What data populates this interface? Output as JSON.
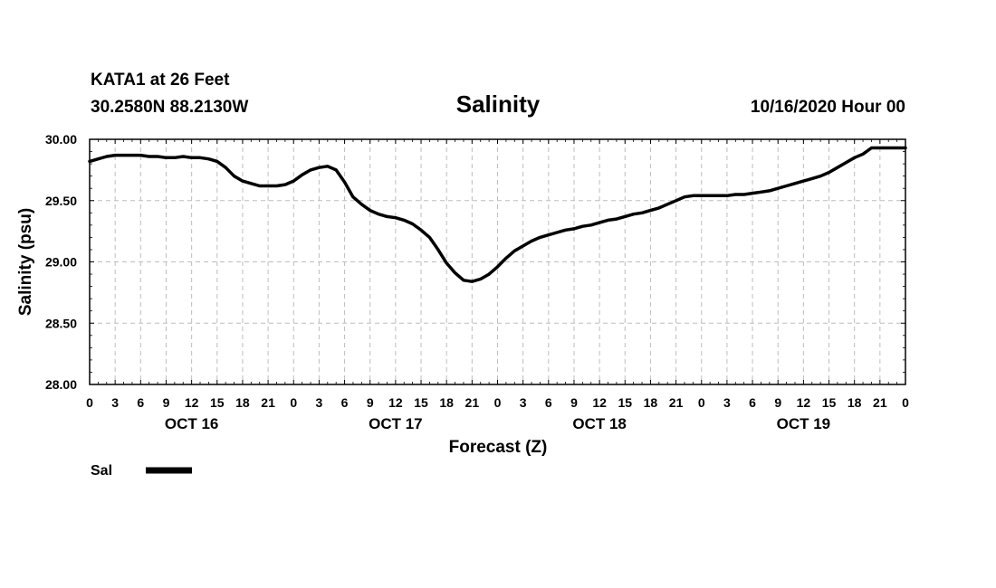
{
  "header": {
    "station": "KATA1 at 26 Feet",
    "coords": "30.2580N 88.2130W",
    "title": "Salinity",
    "timestamp": "10/16/2020 Hour 00"
  },
  "chart_data": {
    "type": "line",
    "title": "Salinity",
    "xlabel": "Forecast (Z)",
    "ylabel": "Salinity (psu)",
    "xlim": [
      0,
      96
    ],
    "ylim": [
      28.0,
      30.0
    ],
    "yticks": [
      "28.00",
      "28.50",
      "29.00",
      "29.50",
      "30.00"
    ],
    "ytick_values": [
      28.0,
      28.5,
      29.0,
      29.5,
      30.0
    ],
    "xtick_labels": [
      "0",
      "3",
      "6",
      "9",
      "12",
      "15",
      "18",
      "21",
      "0",
      "3",
      "6",
      "9",
      "12",
      "15",
      "18",
      "21",
      "0",
      "3",
      "6",
      "9",
      "12",
      "15",
      "18",
      "21",
      "0",
      "3",
      "6",
      "9",
      "12",
      "15",
      "18",
      "21",
      "0"
    ],
    "day_labels": [
      {
        "label": "OCT 16",
        "hour": 12
      },
      {
        "label": "OCT 17",
        "hour": 36
      },
      {
        "label": "OCT 18",
        "hour": 60
      },
      {
        "label": "OCT 19",
        "hour": 84
      }
    ],
    "grid": true,
    "series": [
      {
        "name": "Sal",
        "color": "#000000",
        "x": [
          0,
          1,
          2,
          3,
          4,
          5,
          6,
          7,
          8,
          9,
          10,
          11,
          12,
          13,
          14,
          15,
          16,
          17,
          18,
          19,
          20,
          21,
          22,
          23,
          24,
          25,
          26,
          27,
          28,
          29,
          30,
          31,
          32,
          33,
          34,
          35,
          36,
          37,
          38,
          39,
          40,
          41,
          42,
          43,
          44,
          45,
          46,
          47,
          48,
          49,
          50,
          51,
          52,
          53,
          54,
          55,
          56,
          57,
          58,
          59,
          60,
          61,
          62,
          63,
          64,
          65,
          66,
          67,
          68,
          69,
          70,
          71,
          72,
          73,
          74,
          75,
          76,
          77,
          78,
          79,
          80,
          81,
          82,
          83,
          84,
          85,
          86,
          87,
          88,
          89,
          90,
          91,
          92,
          93,
          94,
          95,
          96
        ],
        "values": [
          29.82,
          29.84,
          29.86,
          29.87,
          29.87,
          29.87,
          29.87,
          29.86,
          29.86,
          29.85,
          29.85,
          29.86,
          29.85,
          29.85,
          29.84,
          29.82,
          29.77,
          29.7,
          29.66,
          29.64,
          29.62,
          29.62,
          29.62,
          29.63,
          29.66,
          29.71,
          29.75,
          29.77,
          29.78,
          29.75,
          29.65,
          29.53,
          29.47,
          29.42,
          29.39,
          29.37,
          29.36,
          29.34,
          29.31,
          29.26,
          29.2,
          29.1,
          28.99,
          28.91,
          28.85,
          28.84,
          28.86,
          28.9,
          28.96,
          29.03,
          29.09,
          29.13,
          29.17,
          29.2,
          29.22,
          29.24,
          29.26,
          29.27,
          29.29,
          29.3,
          29.32,
          29.34,
          29.35,
          29.37,
          29.39,
          29.4,
          29.42,
          29.44,
          29.47,
          29.5,
          29.53,
          29.54,
          29.54,
          29.54,
          29.54,
          29.54,
          29.55,
          29.55,
          29.56,
          29.57,
          29.58,
          29.6,
          29.62,
          29.64,
          29.66,
          29.68,
          29.7,
          29.73,
          29.77,
          29.81,
          29.85,
          29.88,
          29.93,
          29.93,
          29.93,
          29.93,
          29.93
        ]
      }
    ],
    "legend": {
      "position": "bottom-left",
      "entries": [
        "Sal"
      ]
    }
  }
}
